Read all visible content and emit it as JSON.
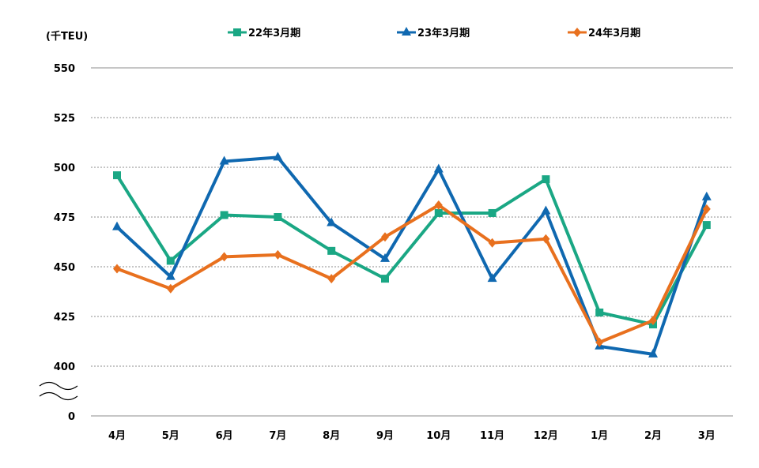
{
  "chart_data": {
    "type": "line",
    "unit_label": "(千TEU)",
    "categories": [
      "4月",
      "5月",
      "6月",
      "7月",
      "8月",
      "9月",
      "10月",
      "11月",
      "12月",
      "1月",
      "2月",
      "3月"
    ],
    "y_ticks": [
      "550",
      "525",
      "500",
      "475",
      "450",
      "425",
      "400",
      "0"
    ],
    "ylim": [
      400,
      550
    ],
    "axis_break": true,
    "grid": true,
    "legend_position": "top",
    "series": [
      {
        "name": "22年3月期",
        "color": "#1aa784",
        "marker": "square",
        "values": [
          496,
          453,
          476,
          475,
          458,
          444,
          477,
          477,
          494,
          427,
          421,
          471
        ]
      },
      {
        "name": "23年3月期",
        "color": "#0f68b0",
        "marker": "triangle",
        "values": [
          470,
          445,
          503,
          505,
          472,
          454,
          499,
          444,
          478,
          410,
          406,
          485
        ]
      },
      {
        "name": "24年3月期",
        "color": "#e8701e",
        "marker": "diamond",
        "values": [
          449,
          439,
          455,
          456,
          444,
          465,
          481,
          462,
          464,
          412,
          423,
          479
        ]
      }
    ]
  }
}
